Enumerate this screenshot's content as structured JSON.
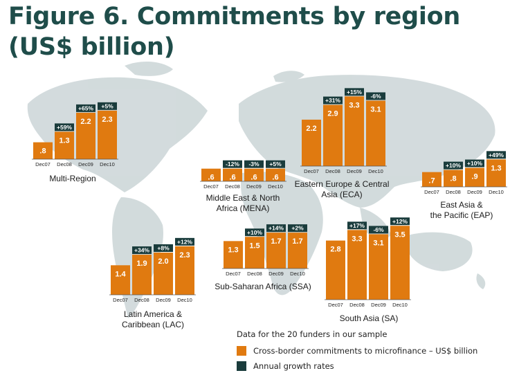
{
  "title": {
    "line1": "Figure 6. Commitments by region",
    "line2": "(US$ billion)"
  },
  "colors": {
    "bar": "#e07a10",
    "growth": "#1a3c3c",
    "map": "#b9c6c8",
    "title": "#1f4d4a"
  },
  "legend": {
    "note": "Data for the 20 funders in our sample",
    "commitments": "Cross-border commitments to microfinance – US$ billion",
    "growth": "Annual growth rates"
  },
  "chart_data": [
    {
      "type": "bar",
      "region": "Multi-Region",
      "categories": [
        "Dec07",
        "Dec08",
        "Dec09",
        "Dec10"
      ],
      "values": [
        0.8,
        1.3,
        2.2,
        2.3
      ],
      "value_labels": [
        ".8",
        "1.3",
        "2.2",
        "2.3"
      ],
      "growth": [
        "",
        "+59%",
        "+65%",
        "+5%"
      ]
    },
    {
      "type": "bar",
      "region": "Middle East & North Africa (MENA)",
      "categories": [
        "Dec07",
        "Dec08",
        "Dec09",
        "Dec10"
      ],
      "values": [
        0.6,
        0.6,
        0.6,
        0.6
      ],
      "value_labels": [
        ".6",
        ".6",
        ".6",
        ".6"
      ],
      "growth": [
        "",
        "-12%",
        "-3%",
        "+5%"
      ]
    },
    {
      "type": "bar",
      "region": "Eastern Europe & Central Asia (ECA)",
      "categories": [
        "Dec07",
        "Dec08",
        "Dec09",
        "Dec10"
      ],
      "values": [
        2.2,
        2.9,
        3.3,
        3.1
      ],
      "value_labels": [
        "2.2",
        "2.9",
        "3.3",
        "3.1"
      ],
      "growth": [
        "",
        "+31%",
        "+15%",
        "-6%"
      ]
    },
    {
      "type": "bar",
      "region": "East Asia & the Pacific (EAP)",
      "categories": [
        "Dec07",
        "Dec08",
        "Dec09",
        "Dec10"
      ],
      "values": [
        0.7,
        0.8,
        0.9,
        1.3
      ],
      "value_labels": [
        ".7",
        ".8",
        ".9",
        "1.3"
      ],
      "growth": [
        "",
        "+10%",
        "+10%",
        "+49%"
      ]
    },
    {
      "type": "bar",
      "region": "Latin America & Caribbean (LAC)",
      "categories": [
        "Dec07",
        "Dec08",
        "Dec09",
        "Dec10"
      ],
      "values": [
        1.4,
        1.9,
        2.0,
        2.3
      ],
      "value_labels": [
        "1.4",
        "1.9",
        "2.0",
        "2.3"
      ],
      "growth": [
        "",
        "+34%",
        "+8%",
        "+12%"
      ]
    },
    {
      "type": "bar",
      "region": "Sub-Saharan Africa (SSA)",
      "categories": [
        "Dec07",
        "Dec08",
        "Dec09",
        "Dec10"
      ],
      "values": [
        1.3,
        1.5,
        1.7,
        1.7
      ],
      "value_labels": [
        "1.3",
        "1.5",
        "1.7",
        "1.7"
      ],
      "growth": [
        "",
        "+10%",
        "+14%",
        "+2%"
      ]
    },
    {
      "type": "bar",
      "region": "South Asia (SA)",
      "categories": [
        "Dec07",
        "Dec08",
        "Dec09",
        "Dec10"
      ],
      "values": [
        2.8,
        3.3,
        3.1,
        3.5
      ],
      "value_labels": [
        "2.8",
        "3.3",
        "3.1",
        "3.5"
      ],
      "growth": [
        "",
        "+17%",
        "-6%",
        "+12%"
      ]
    }
  ]
}
